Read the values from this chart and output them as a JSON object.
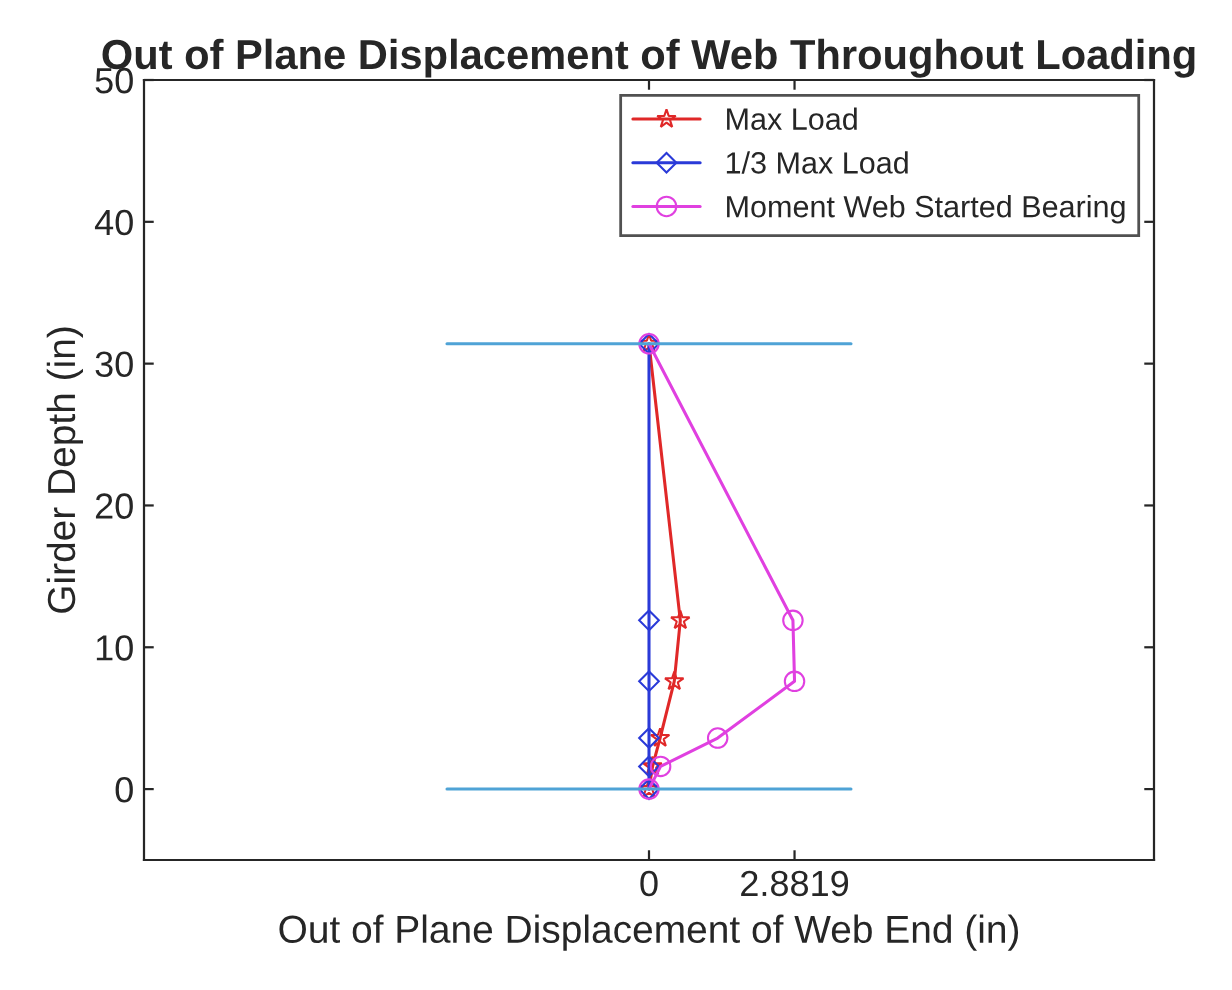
{
  "chart_data": {
    "type": "line",
    "title": "Out of Plane Displacement of Web Throughout Loading",
    "xlabel": "Out of Plane Displacement of Web End (in)",
    "ylabel": "Girder Depth (in)",
    "series": [
      {
        "name": "Max Load",
        "color": "#e02828",
        "marker": "star",
        "x": [
          0,
          0.07,
          0.22,
          0.5,
          0.62,
          0
        ],
        "values": [
          0,
          1.6,
          3.6,
          7.6,
          11.9,
          31.4
        ]
      },
      {
        "name": "1/3 Max Load",
        "color": "#2a3ad8",
        "marker": "diamond",
        "x": [
          0,
          0,
          0,
          0,
          0,
          0
        ],
        "values": [
          0,
          1.6,
          3.6,
          7.6,
          11.9,
          31.4
        ]
      },
      {
        "name": "Moment Web Started Bearing",
        "color": "#e040e0",
        "marker": "circle",
        "x": [
          0,
          0.23,
          1.36,
          2.8819,
          2.85,
          0
        ],
        "values": [
          0,
          1.6,
          3.6,
          7.6,
          11.9,
          31.4
        ]
      },
      {
        "color": "#4fa3d6",
        "marker": "none",
        "x": [
          -4,
          4
        ],
        "values": [
          31.4,
          31.4
        ]
      },
      {
        "color": "#4fa3d6",
        "marker": "none",
        "x": [
          -4,
          4
        ],
        "values": [
          0,
          0
        ]
      }
    ],
    "xlim": [
      -10,
      10
    ],
    "xticks": [
      0,
      2.8819
    ],
    "ylim": [
      -5,
      50
    ],
    "yticks": [
      0,
      10,
      20,
      30,
      40,
      50
    ],
    "grid": false,
    "legend": "top right",
    "line_style": "solid"
  }
}
